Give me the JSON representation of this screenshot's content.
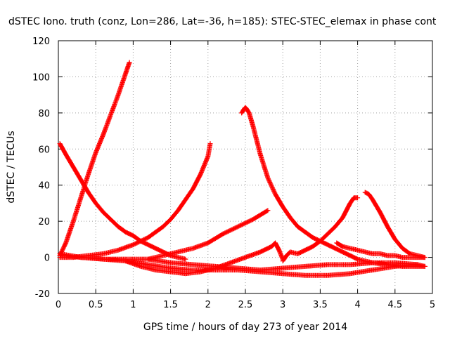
{
  "chart_data": {
    "type": "scatter",
    "title": "dSTEC Iono. truth (conz, Lon=286, Lat=-36, h=185): STEC-STEC_elemax in phase cont",
    "xlabel": "GPS time / hours of day 273 of year 2014",
    "ylabel": "dSTEC  / TECUs",
    "xlim": [
      0,
      5
    ],
    "ylim": [
      -20,
      120
    ],
    "xticks": [
      "0",
      "0.5",
      "1",
      "1.5",
      "2",
      "2.5",
      "3",
      "3.5",
      "4",
      "4.5",
      "5"
    ],
    "yticks": [
      "-20",
      "0",
      "20",
      "40",
      "60",
      "80",
      "100",
      "120"
    ],
    "grid": true,
    "marker": "+",
    "color": "#ff0000",
    "series": [
      {
        "x": [
          0.02,
          0.1,
          0.2,
          0.3,
          0.4,
          0.5,
          0.6,
          0.7,
          0.8,
          0.9,
          0.95
        ],
        "y": [
          1,
          8,
          20,
          33,
          46,
          58,
          68,
          79,
          90,
          102,
          108
        ]
      },
      {
        "x": [
          0.02,
          0.1,
          0.2,
          0.3,
          0.4,
          0.5,
          0.6,
          0.7,
          0.8,
          0.9,
          1.0,
          1.1,
          1.2,
          1.3,
          1.4,
          1.5,
          1.6,
          1.7
        ],
        "y": [
          63,
          57,
          50,
          43,
          36,
          30,
          25,
          21,
          17,
          14,
          12,
          9,
          7,
          5,
          3,
          1,
          0,
          -1
        ]
      },
      {
        "x": [
          0.02,
          0.2,
          0.4,
          0.6,
          0.8,
          1.0,
          1.2,
          1.4,
          1.5,
          1.6,
          1.7,
          1.8,
          1.9,
          2.0,
          2.03
        ],
        "y": [
          0,
          0,
          1,
          2,
          4,
          7,
          11,
          17,
          21,
          26,
          32,
          38,
          46,
          56,
          63
        ]
      },
      {
        "x": [
          0.02,
          0.3,
          0.6,
          0.9,
          1.2,
          1.5,
          1.8,
          2.0,
          2.2,
          2.4,
          2.6,
          2.8
        ],
        "y": [
          1,
          0,
          -1,
          -1,
          -1,
          2,
          5,
          8,
          13,
          17,
          21,
          26
        ]
      },
      {
        "x": [
          0.02,
          0.3,
          0.6,
          0.9,
          1.2,
          1.5,
          1.8,
          2.1,
          2.4,
          2.7,
          3.0,
          3.3,
          3.6,
          3.9,
          4.2,
          4.5,
          4.8
        ],
        "y": [
          2,
          0,
          -1,
          -2,
          -4,
          -6,
          -7,
          -7,
          -7,
          -8,
          -9,
          -10,
          -10,
          -9,
          -7,
          -5,
          -4
        ]
      },
      {
        "x": [
          0.9,
          1.1,
          1.3,
          1.5,
          1.7,
          1.9,
          2.1,
          2.3,
          2.5,
          2.7,
          2.85,
          2.9,
          2.95,
          3.0
        ],
        "y": [
          -2,
          -5,
          -7,
          -8,
          -9,
          -8,
          -6,
          -3,
          0,
          3,
          6,
          8,
          4,
          -1
        ]
      },
      {
        "x": [
          1.2,
          1.5,
          1.8,
          2.1,
          2.4,
          2.7,
          3.0,
          3.3,
          3.6,
          3.9,
          4.2,
          4.5,
          4.8,
          4.9
        ],
        "y": [
          -1,
          -3,
          -4,
          -5,
          -6,
          -7,
          -6,
          -5,
          -4,
          -4,
          -3,
          -3,
          -4,
          -5
        ]
      },
      {
        "x": [
          2.45,
          2.48,
          2.5,
          2.52,
          2.55,
          2.6,
          2.7,
          2.8,
          2.9,
          3.0,
          3.1,
          3.2,
          3.3,
          3.4,
          3.5,
          3.6,
          3.7,
          3.8,
          3.9,
          4.0,
          4.2,
          4.4,
          4.6,
          4.8,
          4.9
        ],
        "y": [
          80,
          82,
          83,
          82,
          80,
          73,
          57,
          44,
          35,
          28,
          22,
          17,
          14,
          11,
          9,
          7,
          5,
          3,
          1,
          -1,
          -3,
          -4,
          -5,
          -5,
          -5
        ]
      },
      {
        "x": [
          3.0,
          3.05,
          3.1,
          3.2,
          3.3,
          3.4,
          3.5,
          3.6,
          3.7,
          3.8,
          3.85,
          3.9,
          3.95,
          4.0
        ],
        "y": [
          -2,
          1,
          3,
          2,
          4,
          6,
          9,
          13,
          17,
          22,
          26,
          30,
          33,
          33
        ]
      },
      {
        "x": [
          3.72,
          3.8,
          3.9,
          4.0,
          4.1,
          4.2,
          4.3,
          4.4,
          4.5,
          4.6,
          4.7,
          4.8,
          4.9
        ],
        "y": [
          8,
          6,
          5,
          4,
          3,
          2,
          2,
          1,
          1,
          0,
          0,
          0,
          0
        ]
      },
      {
        "x": [
          4.1,
          4.15,
          4.2,
          4.3,
          4.4,
          4.5,
          4.6,
          4.7,
          4.8,
          4.9
        ],
        "y": [
          36,
          35,
          32,
          25,
          17,
          10,
          5,
          2,
          1,
          0
        ]
      }
    ]
  }
}
